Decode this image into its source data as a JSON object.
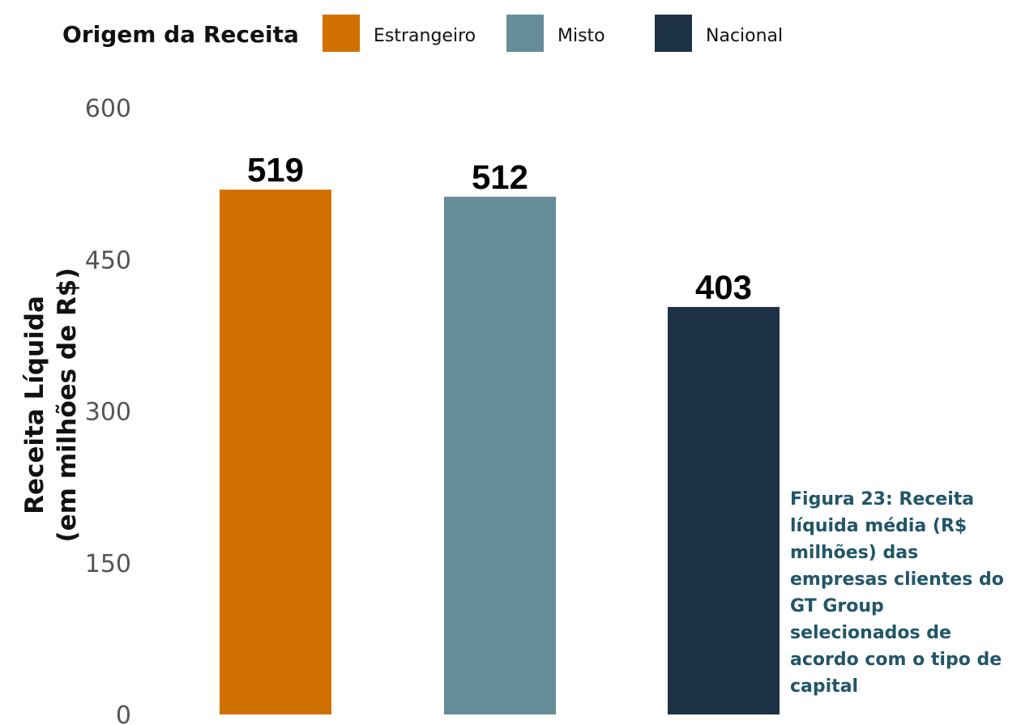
{
  "chart_data": {
    "type": "bar",
    "categories": [
      "Estrangeiro",
      "Misto",
      "Nacional"
    ],
    "values": [
      519,
      512,
      403
    ],
    "data_labels": [
      "519",
      "512",
      "403"
    ],
    "colors": [
      "#D07000",
      "#658D9A",
      "#1D3246"
    ],
    "title": "",
    "xlabel": "",
    "ylabel": [
      "Receita Líquida",
      "(em milhões de R$)"
    ],
    "ylim": [
      0,
      600
    ],
    "yticks": [
      0,
      150,
      300,
      450,
      600
    ],
    "ytick_labels": [
      "0",
      "150",
      "300",
      "450",
      "600"
    ],
    "legend_title": "Origem da Receita",
    "legend_position": "top-left",
    "grid": false
  },
  "caption": "Figura 23: Receita líquida média (R$ milhões) das empresas clientes do GT Group selecionados de acordo com o tipo de capital"
}
